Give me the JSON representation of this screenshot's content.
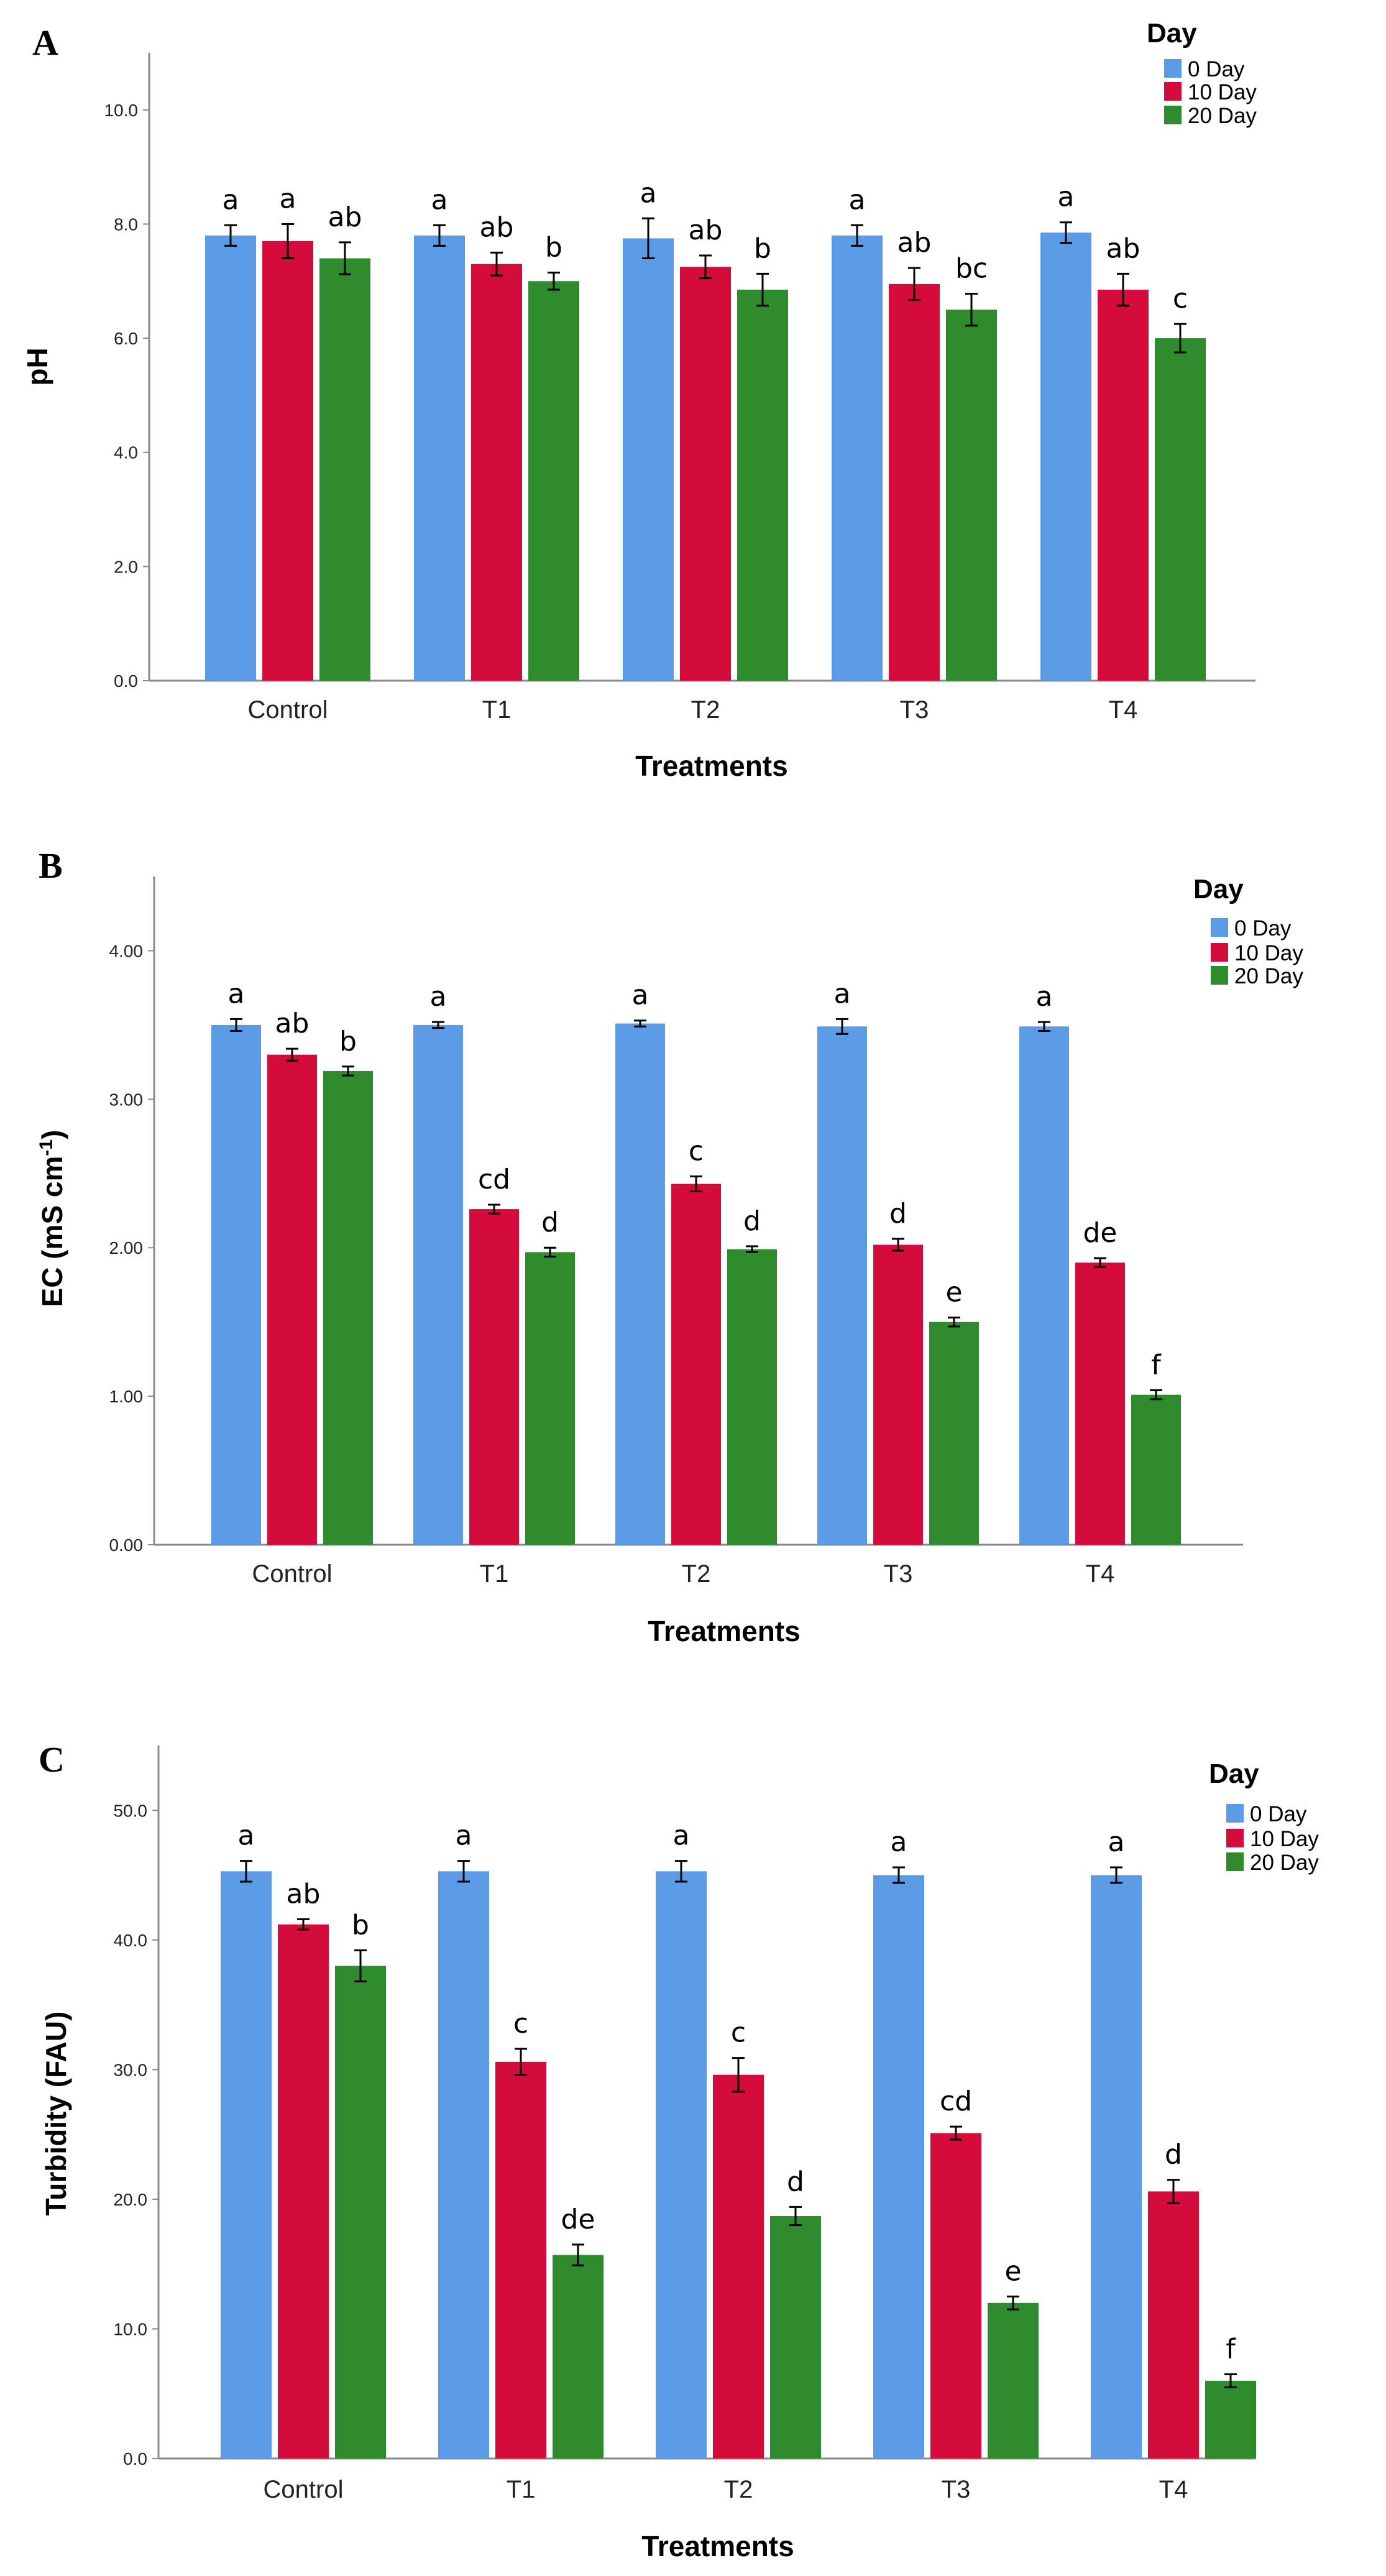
{
  "colors": {
    "day0": "#5B9BE6",
    "day10": "#D40B3B",
    "day20": "#2E8B2E",
    "axis": "#8a8a8a",
    "errorbar": "#000000"
  },
  "chart_data": [
    {
      "type": "bar",
      "panel": "A",
      "ylabel": "pH",
      "xlabel": "Treatments",
      "ylim": [
        0,
        11
      ],
      "yticks": [
        "0.0",
        "2.0",
        "4.0",
        "6.0",
        "8.0",
        "10.0"
      ],
      "ytick_values": [
        0,
        2,
        4,
        6,
        8,
        10
      ],
      "categories": [
        "Control",
        "T1",
        "T2",
        "T3",
        "T4"
      ],
      "legend": {
        "title": "Day",
        "position": "top-right"
      },
      "series": [
        {
          "name": "0 Day",
          "values": [
            7.8,
            7.8,
            7.75,
            7.8,
            7.85
          ],
          "errors": [
            0.18,
            0.18,
            0.35,
            0.18,
            0.18
          ],
          "letters": [
            "a",
            "a",
            "a",
            "a",
            "a"
          ]
        },
        {
          "name": "10 Day",
          "values": [
            7.7,
            7.3,
            7.25,
            6.95,
            6.85
          ],
          "errors": [
            0.3,
            0.2,
            0.2,
            0.28,
            0.28
          ],
          "letters": [
            "a",
            "ab",
            "ab",
            "ab",
            "ab"
          ]
        },
        {
          "name": "20 Day",
          "values": [
            7.4,
            7.0,
            6.85,
            6.5,
            6.0
          ],
          "errors": [
            0.28,
            0.15,
            0.28,
            0.28,
            0.25
          ],
          "letters": [
            "ab",
            "b",
            "b",
            "bc",
            "c"
          ]
        }
      ]
    },
    {
      "type": "bar",
      "panel": "B",
      "ylabel": "EC (mS cm",
      "ylabel_sup": "-1",
      "ylabel_close": ")",
      "xlabel": "Treatments",
      "ylim": [
        0,
        4.5
      ],
      "yticks": [
        "0.00",
        "1.00",
        "2.00",
        "3.00",
        "4.00"
      ],
      "ytick_values": [
        0,
        1,
        2,
        3,
        4
      ],
      "categories": [
        "Control",
        "T1",
        "T2",
        "T3",
        "T4"
      ],
      "legend": {
        "title": "Day",
        "position": "top-right"
      },
      "series": [
        {
          "name": "0 Day",
          "values": [
            3.5,
            3.5,
            3.51,
            3.49,
            3.49
          ],
          "errors": [
            0.04,
            0.02,
            0.02,
            0.05,
            0.03
          ],
          "letters": [
            "a",
            "a",
            "a",
            "a",
            "a"
          ]
        },
        {
          "name": "10 Day",
          "values": [
            3.3,
            2.26,
            2.43,
            2.02,
            1.9
          ],
          "errors": [
            0.04,
            0.03,
            0.05,
            0.04,
            0.03
          ],
          "letters": [
            "ab",
            "cd",
            "c",
            "d",
            "de"
          ]
        },
        {
          "name": "20 Day",
          "values": [
            3.19,
            1.97,
            1.99,
            1.5,
            1.01
          ],
          "errors": [
            0.03,
            0.03,
            0.02,
            0.03,
            0.03
          ],
          "letters": [
            "b",
            "d",
            "d",
            "e",
            "f"
          ]
        }
      ]
    },
    {
      "type": "bar",
      "panel": "C",
      "ylabel": "Turbidity (FAU)",
      "xlabel": "Treatments",
      "ylim": [
        0,
        55
      ],
      "yticks": [
        "0.0",
        "10.0",
        "20.0",
        "30.0",
        "40.0",
        "50.0"
      ],
      "ytick_values": [
        0,
        10,
        20,
        30,
        40,
        50
      ],
      "categories": [
        "Control",
        "T1",
        "T2",
        "T3",
        "T4"
      ],
      "legend": {
        "title": "Day",
        "position": "top-right"
      },
      "series": [
        {
          "name": "0 Day",
          "values": [
            45.3,
            45.3,
            45.3,
            45.0,
            45.0
          ],
          "errors": [
            0.8,
            0.8,
            0.8,
            0.6,
            0.6
          ],
          "letters": [
            "a",
            "a",
            "a",
            "a",
            "a"
          ]
        },
        {
          "name": "10 Day",
          "values": [
            41.2,
            30.6,
            29.6,
            25.1,
            20.6
          ],
          "errors": [
            0.4,
            1.0,
            1.3,
            0.5,
            0.9
          ],
          "letters": [
            "ab",
            "c",
            "c",
            "cd",
            "d"
          ]
        },
        {
          "name": "20 Day",
          "values": [
            38.0,
            15.7,
            18.7,
            12.0,
            6.0
          ],
          "errors": [
            1.2,
            0.8,
            0.7,
            0.5,
            0.5
          ],
          "letters": [
            "b",
            "de",
            "d",
            "e",
            "f"
          ]
        }
      ]
    }
  ]
}
